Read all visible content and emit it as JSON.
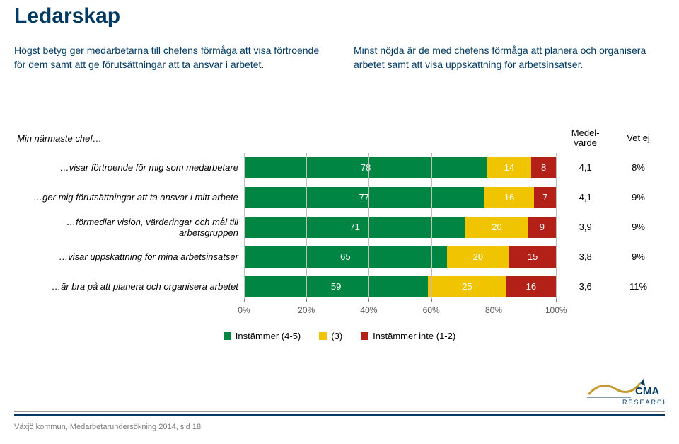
{
  "title": {
    "text": "Ledarskap",
    "color": "#003a63",
    "fontsize": 30
  },
  "intro": {
    "left": {
      "text": "Högst betyg ger medarbetarna till chefens förmåga att visa förtroende för dem samt att ge förutsättningar att ta ansvar i arbetet.",
      "color": "#003a63"
    },
    "right": {
      "text": "Minst nöjda är de med chefens förmåga att planera och organisera arbetet samt att visa uppskattning för arbetsinsatser.",
      "color": "#003a63"
    }
  },
  "chart": {
    "row_header": "Min närmaste chef…",
    "mv_header": "Medel-\nvärde",
    "ve_header": "Vet ej",
    "colors": {
      "agree": "#008542",
      "neutral": "#f0c400",
      "disagree": "#b22017",
      "grid": "#bfbfbf",
      "seg_text": "#ffffff"
    },
    "axis": {
      "min": 0,
      "max": 100,
      "step": 20,
      "suffix": "%",
      "ticks": [
        0,
        20,
        40,
        60,
        80,
        100
      ]
    },
    "rows": [
      {
        "label": "…visar förtroende för mig som medarbetare",
        "agree": 78,
        "neutral": 14,
        "disagree": 8,
        "mv": "4,1",
        "ve": "8%"
      },
      {
        "label": "…ger mig förutsättningar att ta ansvar i mitt arbete",
        "agree": 77,
        "neutral": 16,
        "disagree": 7,
        "mv": "4,1",
        "ve": "9%"
      },
      {
        "label": "…förmedlar vision, värderingar och mål till arbetsgruppen",
        "agree": 71,
        "neutral": 20,
        "disagree": 9,
        "mv": "3,9",
        "ve": "9%"
      },
      {
        "label": "…visar uppskattning för mina arbetsinsatser",
        "agree": 65,
        "neutral": 20,
        "disagree": 15,
        "mv": "3,8",
        "ve": "9%"
      },
      {
        "label": "…är bra på att planera och organisera arbetet",
        "agree": 59,
        "neutral": 25,
        "disagree": 16,
        "mv": "3,6",
        "ve": "11%"
      }
    ],
    "legend": [
      {
        "swatch": "#008542",
        "label": "Instämmer (4-5)"
      },
      {
        "swatch": "#f0c400",
        "label": "(3)"
      },
      {
        "swatch": "#b22017",
        "label": "Instämmer inte (1-2)"
      }
    ]
  },
  "footer": {
    "text": "Växjö kommun, Medarbetarundersökning 2014, sid 18",
    "color": "#7a7a7a"
  },
  "logo": {
    "name": "CMA RESEARCH",
    "primary": "#003a63",
    "accent": "#c59a2e"
  }
}
